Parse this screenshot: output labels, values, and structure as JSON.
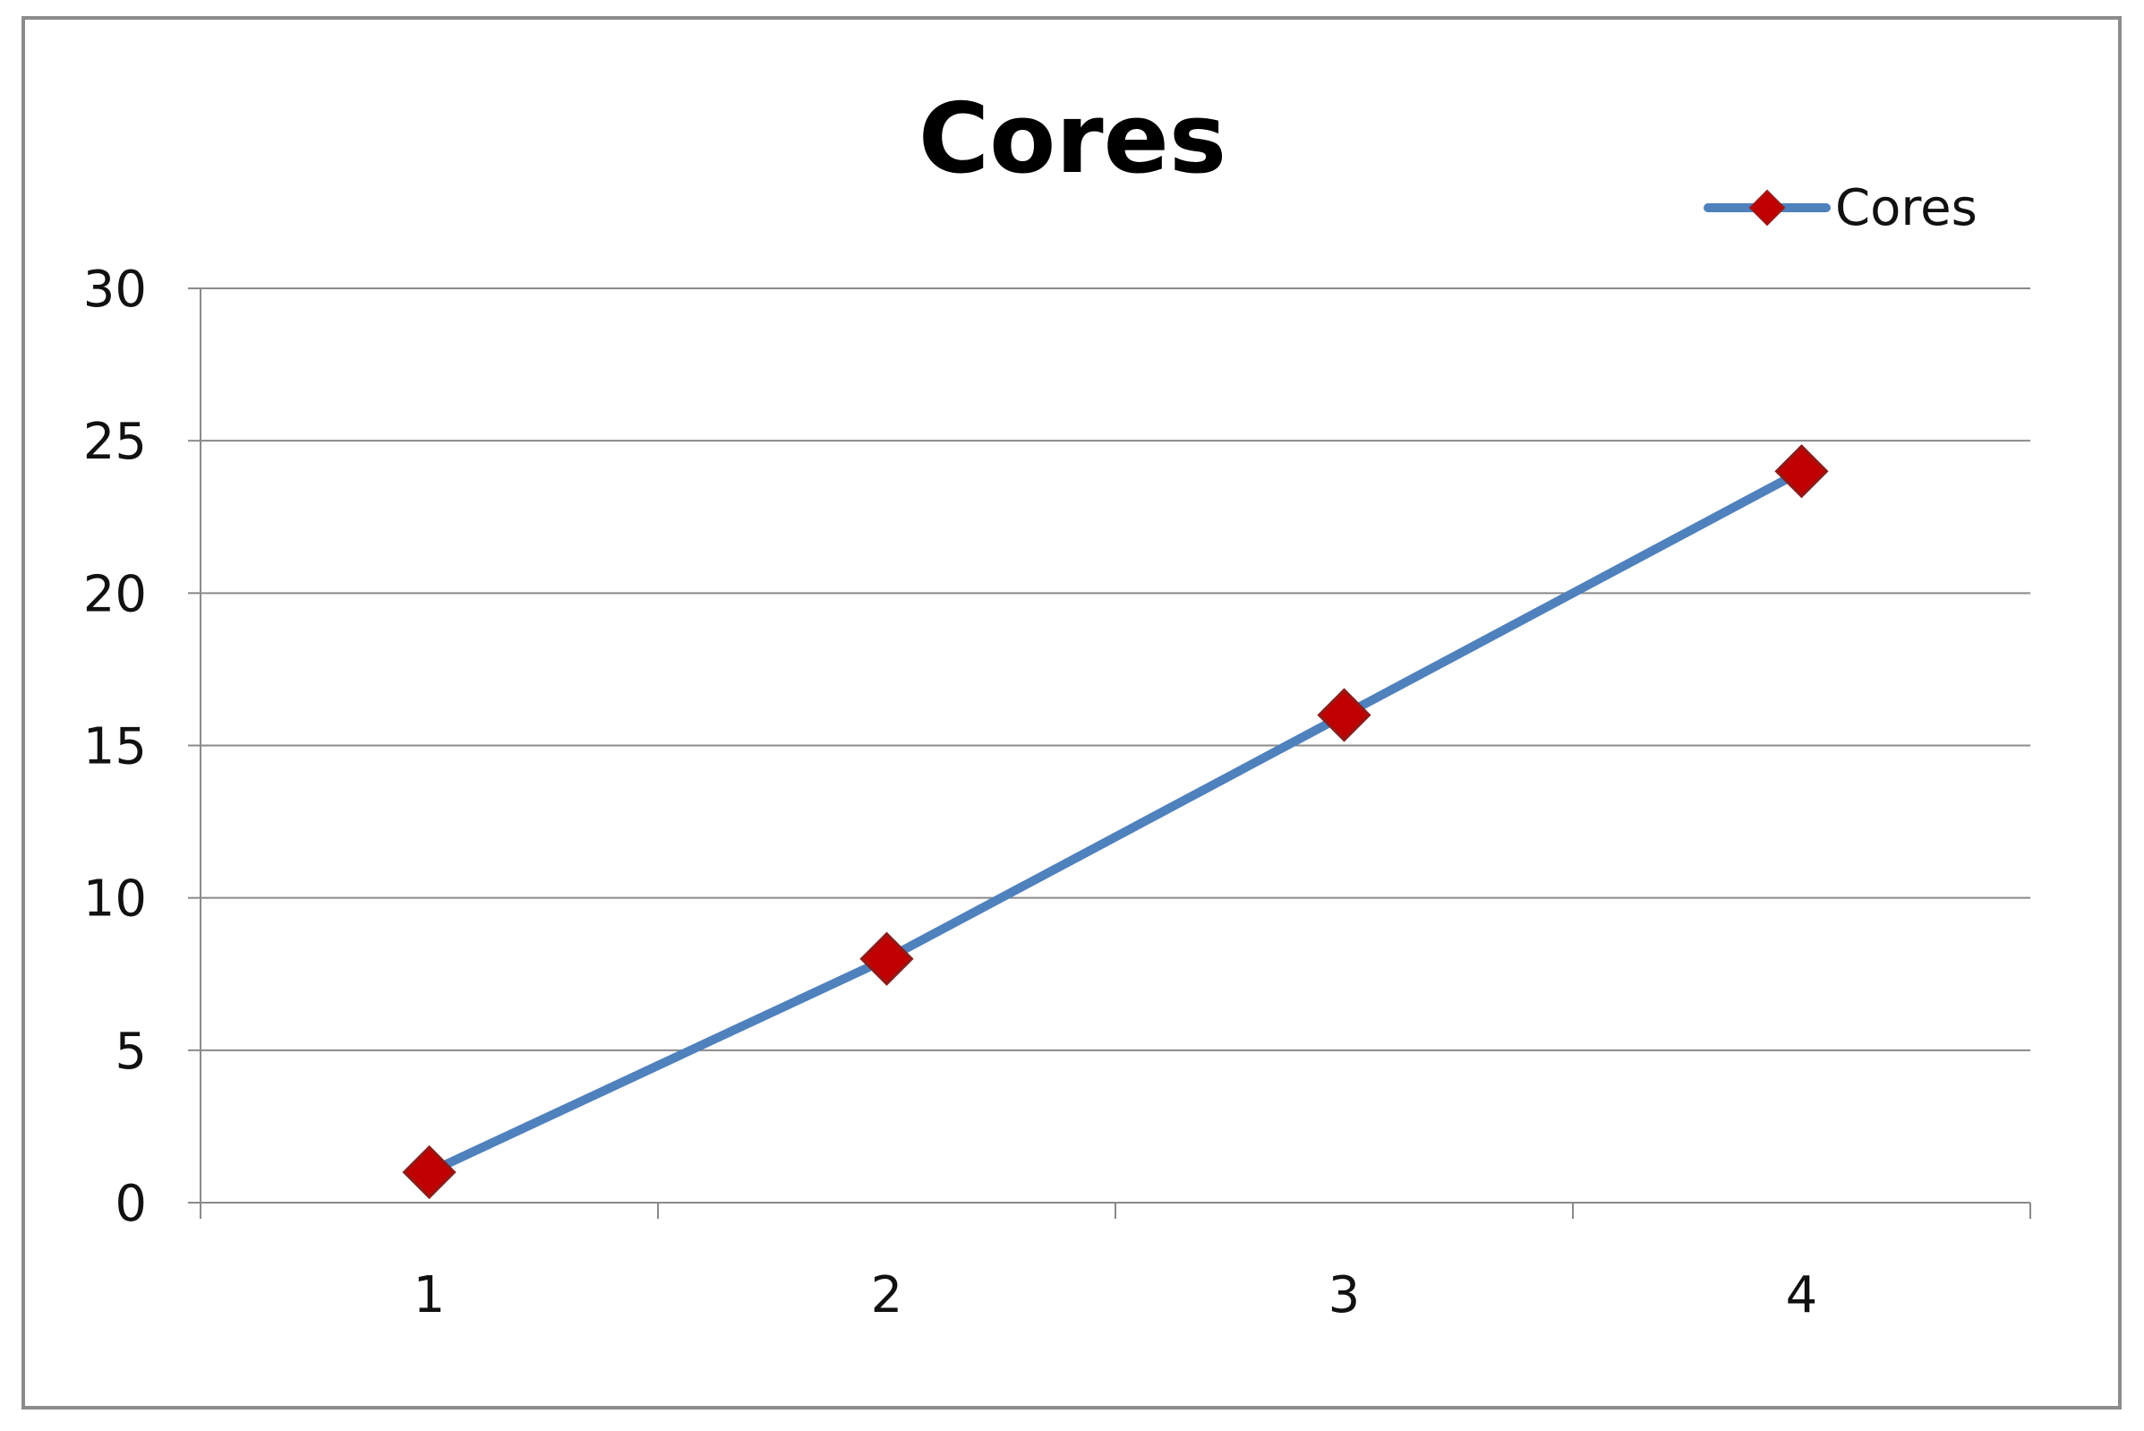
{
  "chart_data": {
    "type": "line",
    "title": "Cores",
    "xlabel": "",
    "ylabel": "",
    "categories": [
      "1",
      "2",
      "3",
      "4"
    ],
    "series": [
      {
        "name": "Cores",
        "values": [
          1,
          8,
          16,
          24
        ],
        "color": "#4f81bd",
        "marker": "diamond",
        "marker_color": "#c00000"
      }
    ],
    "ylim": [
      0,
      30
    ],
    "yticks": [
      "0",
      "5",
      "10",
      "15",
      "20",
      "25",
      "30"
    ],
    "grid": true,
    "legend_position": "top-right"
  }
}
